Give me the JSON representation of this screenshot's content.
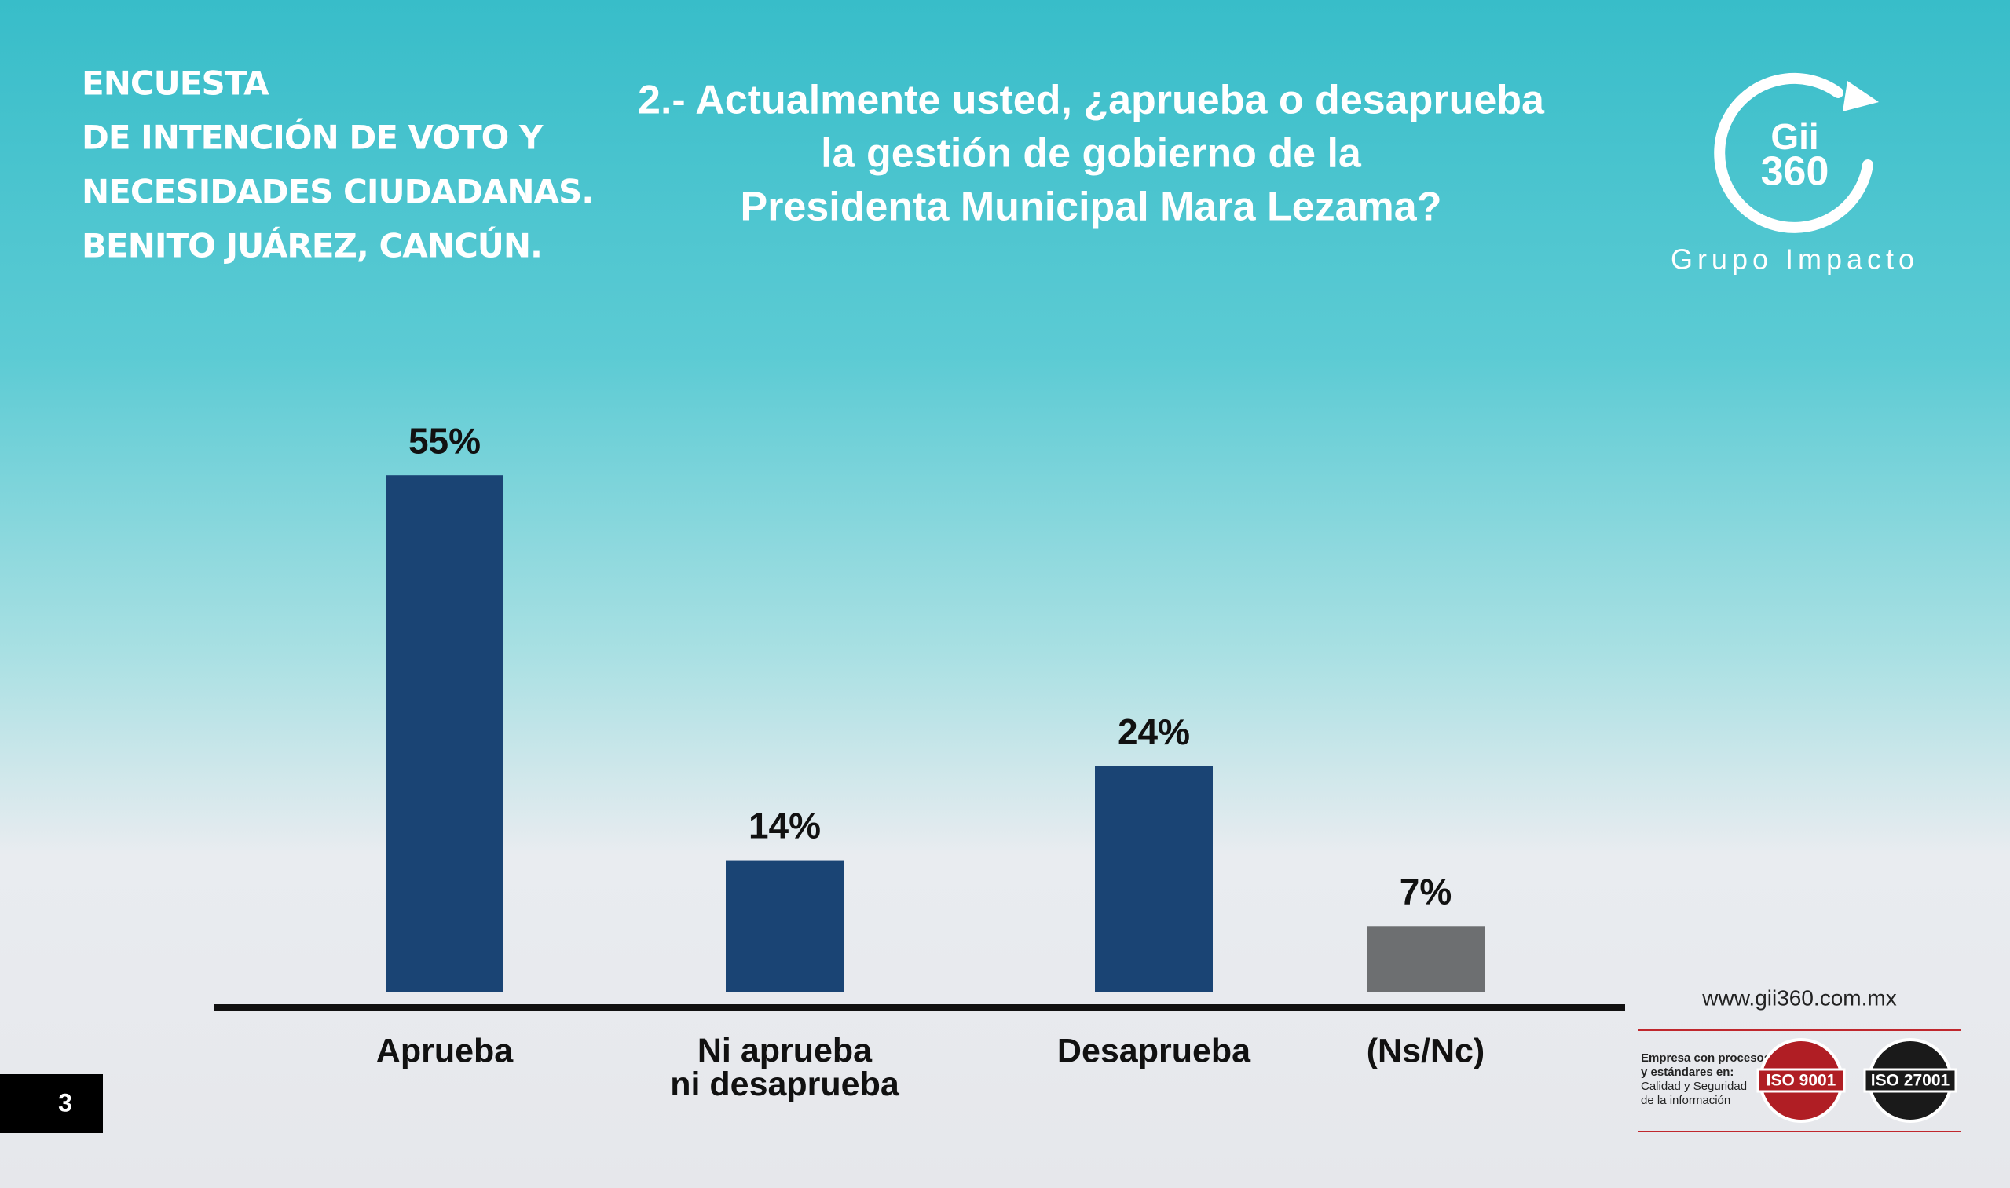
{
  "header": {
    "lines": [
      "ENCUESTA",
      "DE INTENCIÓN DE VOTO Y",
      "NECESIDADES CIUDADANAS.",
      "BENITO JUÁREZ, CANCÚN."
    ]
  },
  "logo": {
    "name": "Gii",
    "number": "360",
    "caption": "Grupo Impacto"
  },
  "footer": {
    "page": "3",
    "website": "www.gii360.com.mx",
    "cert_line1": "Empresa con procesos",
    "cert_line2": "y estándares en:",
    "cert_line3": "Calidad y Seguridad",
    "cert_line4": "de la información",
    "iso1": "ISO 9001",
    "iso2": "ISO 27001"
  },
  "chart_data": {
    "type": "bar",
    "title_lines": [
      "2.- Actualmente usted, ¿aprueba o desaprueba",
      "la gestión de gobierno de la",
      "Presidenta Municipal Mara Lezama?"
    ],
    "categories": [
      "Aprueba",
      "Ni aprueba\nni desaprueba",
      "Desaprueba",
      "(Ns/Nc)"
    ],
    "values": [
      55,
      14,
      24,
      7
    ],
    "value_labels": [
      "55%",
      "14%",
      "24%",
      "7%"
    ],
    "colors": [
      "#1a4474",
      "#1a4474",
      "#1a4474",
      "#6d6f71"
    ]
  }
}
